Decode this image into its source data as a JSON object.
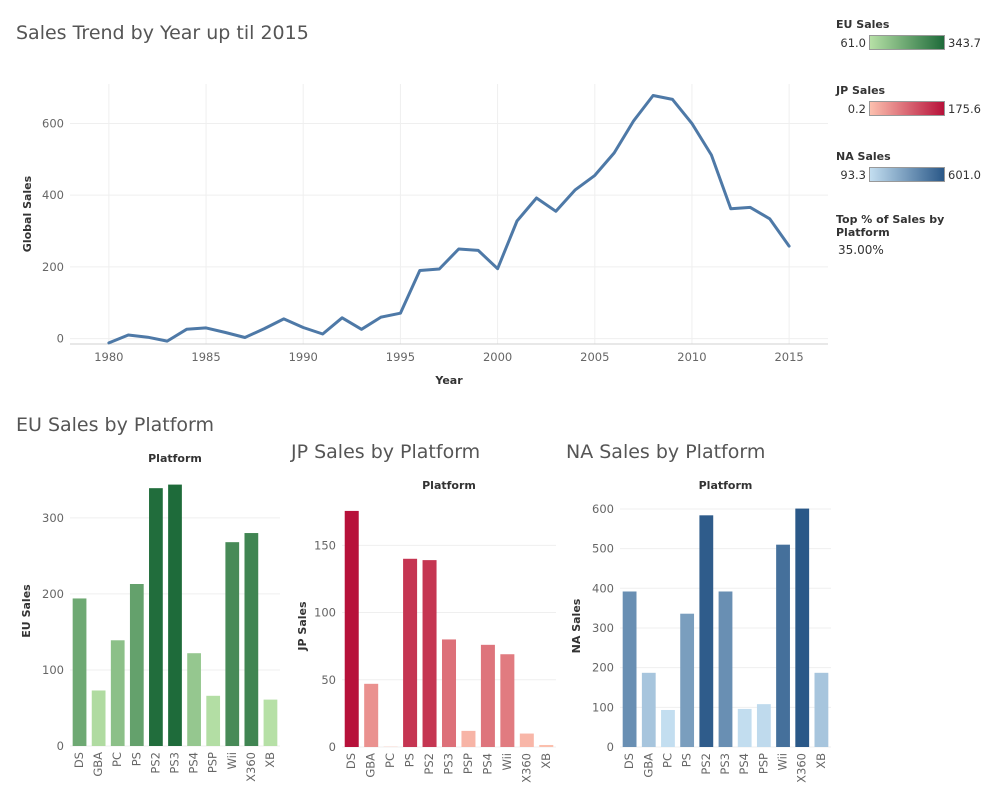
{
  "titles": {
    "line": "Sales Trend by Year up til 2015",
    "eu": "EU Sales by Platform",
    "jp": "JP Sales by Platform",
    "na": "NA Sales by Platform"
  },
  "legends": {
    "eu": {
      "title": "EU Sales",
      "min": "61.0",
      "max": "343.7",
      "color_low": "#b6e0a6",
      "color_high": "#1e6b3a"
    },
    "jp": {
      "title": "JP Sales",
      "min": "0.2",
      "max": "175.6",
      "color_low": "#fcc0ae",
      "color_high": "#b7113a"
    },
    "na": {
      "title": "NA Sales",
      "min": "93.3",
      "max": "601.0",
      "color_low": "#c3def0",
      "color_high": "#2a5888"
    },
    "top_pct": {
      "title": "Top % of Sales by Platform",
      "value": "35.00%"
    }
  },
  "chart_data": [
    {
      "type": "line",
      "title": "Sales Trend by Year up til 2015",
      "xlabel": "Year",
      "ylabel": "Global Sales",
      "xlim": [
        1978,
        2017
      ],
      "ylim": [
        -15,
        710
      ],
      "xticks": [
        1980,
        1985,
        1990,
        1995,
        2000,
        2005,
        2010,
        2015
      ],
      "yticks": [
        0,
        200,
        400,
        600
      ],
      "color": "#4e79a7",
      "x": [
        1980,
        1981,
        1982,
        1983,
        1984,
        1985,
        1986,
        1987,
        1988,
        1989,
        1990,
        1991,
        1992,
        1993,
        1994,
        1995,
        1996,
        1997,
        1998,
        1999,
        2000,
        2001,
        2002,
        2003,
        2004,
        2005,
        2006,
        2007,
        2008,
        2009,
        2010,
        2011,
        2012,
        2013,
        2014,
        2015
      ],
      "y": [
        -12,
        10,
        4,
        -7,
        26,
        30,
        17,
        3,
        28,
        55,
        31,
        13,
        58,
        26,
        60,
        71,
        190,
        194,
        250,
        246,
        195,
        328,
        392,
        355,
        415,
        455,
        518,
        607,
        678,
        667,
        600,
        512,
        362,
        366,
        334,
        258
      ]
    },
    {
      "type": "bar",
      "title": "EU Sales by Platform",
      "xlabel": "Platform",
      "ylabel": "EU Sales",
      "ylim": [
        0,
        355
      ],
      "yticks": [
        0,
        100,
        200,
        300
      ],
      "categories": [
        "DS",
        "GBA",
        "PC",
        "PS",
        "PS2",
        "PS3",
        "PS4",
        "PSP",
        "Wii",
        "X360",
        "XB"
      ],
      "values": [
        194,
        73,
        139,
        213,
        339,
        343.7,
        122,
        66,
        268,
        280,
        61
      ],
      "color_low": "#b6e0a6",
      "color_high": "#1e6b3a"
    },
    {
      "type": "bar",
      "title": "JP Sales by Platform",
      "xlabel": "Platform",
      "ylabel": "JP Sales",
      "ylim": [
        0,
        180
      ],
      "yticks": [
        0,
        50,
        100,
        150
      ],
      "categories": [
        "DS",
        "GBA",
        "PC",
        "PS",
        "PS2",
        "PS3",
        "PSP",
        "PS4",
        "Wii",
        "X360",
        "XB"
      ],
      "values": [
        175.6,
        47,
        0.2,
        140,
        139,
        80,
        12,
        76,
        69,
        10,
        1.5
      ],
      "color_low": "#fcc0ae",
      "color_high": "#b7113a"
    },
    {
      "type": "bar",
      "title": "NA Sales by Platform",
      "xlabel": "Platform",
      "ylabel": "NA Sales",
      "ylim": [
        0,
        610
      ],
      "yticks": [
        0,
        100,
        200,
        300,
        400,
        500,
        600
      ],
      "categories": [
        "DS",
        "GBA",
        "PC",
        "PS",
        "PS2",
        "PS3",
        "PS4",
        "PSP",
        "Wii",
        "X360",
        "XB"
      ],
      "values": [
        392,
        187,
        93.3,
        336,
        584,
        392,
        96,
        108,
        510,
        601.0,
        187
      ],
      "color_low": "#c3def0",
      "color_high": "#2a5888"
    }
  ]
}
